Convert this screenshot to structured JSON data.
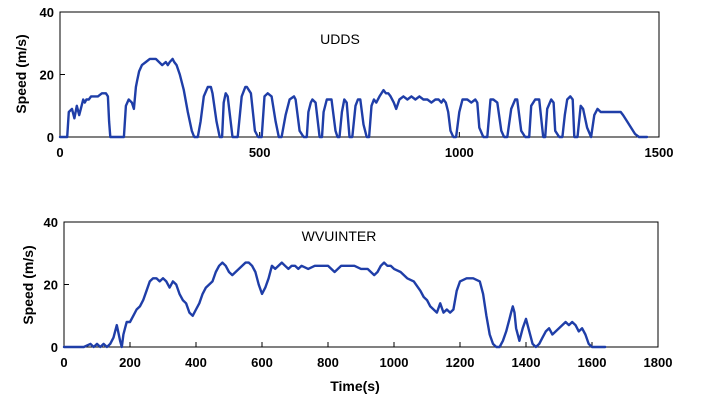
{
  "chart_data": [
    {
      "type": "line",
      "title": "UDDS",
      "xlabel": "",
      "ylabel": "Speed (m/s)",
      "xlim": [
        0,
        1500
      ],
      "ylim": [
        0,
        40
      ],
      "xticks": [
        0,
        500,
        1000,
        1500
      ],
      "yticks": [
        0,
        20,
        40
      ],
      "grid": false,
      "line_color": "#1f3ea8",
      "series": [
        {
          "x": [
            0,
            18,
            22,
            30,
            36,
            42,
            48,
            52,
            58,
            62,
            66,
            72,
            78,
            85,
            95,
            105,
            115,
            120,
            123,
            126,
            130,
            160,
            165,
            172,
            180,
            185,
            190,
            193,
            198,
            205,
            215,
            225,
            232,
            240,
            248,
            256,
            265,
            270,
            275,
            282,
            286,
            292,
            300,
            310,
            320,
            330,
            336,
            345,
            352,
            360,
            370,
            378,
            382,
            392,
            400,
            406,
            410,
            415,
            420,
            432,
            438,
            445,
            455,
            464,
            468,
            478,
            488,
            496,
            505,
            512,
            520,
            530,
            540,
            548,
            555,
            565,
            575,
            586,
            590,
            600,
            610,
            618,
            622,
            628,
            632,
            640,
            650,
            656,
            660,
            668,
            680,
            690,
            695,
            700,
            706,
            712,
            718,
            725,
            732,
            740,
            746,
            752,
            760,
            768,
            774,
            780,
            786,
            792,
            800,
            810,
            816,
            822,
            828,
            836,
            842,
            850,
            860,
            870,
            880,
            890,
            900,
            910,
            920,
            930,
            940,
            948,
            955,
            960,
            966,
            972,
            978,
            985,
            992,
            1000,
            1008,
            1020,
            1030,
            1040,
            1045,
            1050,
            1060,
            1070,
            1078,
            1085,
            1095,
            1105,
            1112,
            1120,
            1130,
            1140,
            1145,
            1155,
            1165,
            1175,
            1180,
            1190,
            1200,
            1210,
            1215,
            1220,
            1230,
            1236,
            1240,
            1250,
            1258,
            1264,
            1270,
            1278,
            1284,
            1288,
            1296,
            1304,
            1310,
            1320,
            1330,
            1338,
            1346,
            1354,
            1362,
            1370,
            1380,
            1390,
            1398,
            1404,
            1410,
            1420,
            1440,
            1450,
            1460,
            1470
          ],
          "y": [
            0,
            0,
            8,
            9,
            6,
            10,
            7,
            9,
            12,
            11,
            12,
            12,
            13,
            13,
            13,
            14,
            14,
            13,
            5,
            0,
            0,
            0,
            10,
            12,
            11,
            9,
            16,
            18,
            21,
            23,
            24,
            25,
            25,
            25,
            24,
            23,
            24,
            23,
            24,
            25,
            24,
            23,
            20,
            15,
            8,
            2,
            0,
            0,
            5,
            13,
            16,
            16,
            14,
            5,
            0,
            0,
            11,
            14,
            13,
            0,
            0,
            0,
            13,
            16,
            16,
            14,
            2,
            0,
            0,
            13,
            14,
            13,
            5,
            0,
            0,
            7,
            12,
            13,
            12,
            2,
            0,
            0,
            8,
            11,
            12,
            11,
            0,
            0,
            8,
            12,
            12,
            2,
            0,
            0,
            8,
            12,
            11,
            0,
            0,
            10,
            12,
            12,
            4,
            0,
            0,
            10,
            12,
            11,
            13,
            15,
            14,
            14,
            13,
            11,
            9,
            12,
            13,
            12,
            13,
            12,
            13,
            12,
            12,
            11,
            12,
            12,
            11,
            12,
            11,
            8,
            2,
            0,
            0,
            8,
            12,
            12,
            11,
            12,
            11,
            3,
            0,
            0,
            12,
            12,
            11,
            2,
            0,
            0,
            9,
            12,
            12,
            2,
            0,
            0,
            10,
            12,
            12,
            0,
            0,
            9,
            12,
            11,
            2,
            0,
            0,
            7,
            12,
            13,
            12,
            0,
            0,
            10,
            9,
            3,
            0,
            7,
            9,
            8,
            8,
            8,
            8,
            8,
            8,
            8,
            7,
            5,
            1,
            0,
            0,
            0
          ]
        }
      ]
    },
    {
      "type": "line",
      "title": "WVUINTER",
      "xlabel": "Time(s)",
      "ylabel": "Speed (m/s)",
      "xlim": [
        0,
        1800
      ],
      "ylim": [
        0,
        40
      ],
      "xticks": [
        0,
        200,
        400,
        600,
        800,
        1000,
        1200,
        1400,
        1600,
        1800
      ],
      "yticks": [
        0,
        20,
        40
      ],
      "grid": false,
      "line_color": "#1f3ea8",
      "series": [
        {
          "x": [
            0,
            60,
            80,
            90,
            100,
            110,
            120,
            130,
            140,
            150,
            160,
            170,
            175,
            180,
            185,
            190,
            200,
            210,
            220,
            230,
            240,
            250,
            260,
            270,
            280,
            290,
            300,
            310,
            320,
            330,
            340,
            350,
            360,
            370,
            380,
            390,
            400,
            410,
            420,
            430,
            440,
            450,
            460,
            470,
            480,
            490,
            500,
            510,
            520,
            530,
            540,
            550,
            560,
            570,
            580,
            590,
            600,
            610,
            620,
            630,
            640,
            650,
            660,
            670,
            680,
            690,
            700,
            710,
            720,
            740,
            760,
            780,
            800,
            820,
            840,
            860,
            880,
            900,
            920,
            940,
            950,
            960,
            970,
            980,
            990,
            1000,
            1020,
            1040,
            1060,
            1080,
            1090,
            1100,
            1110,
            1120,
            1130,
            1140,
            1150,
            1160,
            1170,
            1180,
            1190,
            1200,
            1220,
            1240,
            1260,
            1270,
            1280,
            1290,
            1300,
            1310,
            1320,
            1330,
            1340,
            1350,
            1355,
            1360,
            1365,
            1370,
            1380,
            1390,
            1400,
            1410,
            1420,
            1430,
            1440,
            1450,
            1460,
            1470,
            1480,
            1490,
            1500,
            1510,
            1520,
            1530,
            1540,
            1550,
            1560,
            1570,
            1580,
            1590,
            1600,
            1620,
            1640
          ],
          "y": [
            0,
            0,
            1,
            0,
            1,
            0,
            1,
            0,
            1,
            3,
            7,
            2,
            0,
            4,
            6,
            8,
            8,
            10,
            12,
            13,
            15,
            18,
            21,
            22,
            22,
            21,
            22,
            21,
            19,
            21,
            20,
            17,
            15,
            14,
            11,
            10,
            12,
            14,
            17,
            19,
            20,
            21,
            24,
            26,
            27,
            26,
            24,
            23,
            24,
            25,
            26,
            27,
            27,
            26,
            24,
            20,
            17,
            19,
            22,
            26,
            25,
            26,
            27,
            26,
            25,
            26,
            26,
            25,
            26,
            25,
            26,
            26,
            26,
            24,
            26,
            26,
            26,
            25,
            25,
            23,
            24,
            26,
            27,
            26,
            26,
            25,
            24,
            22,
            21,
            18,
            16,
            15,
            13,
            12,
            11,
            14,
            11,
            12,
            11,
            12,
            18,
            21,
            22,
            22,
            21,
            17,
            10,
            4,
            1,
            0,
            0,
            2,
            5,
            9,
            11,
            13,
            11,
            6,
            2,
            6,
            9,
            5,
            1,
            0,
            1,
            3,
            5,
            6,
            4,
            5,
            6,
            7,
            8,
            7,
            8,
            7,
            5,
            6,
            4,
            1,
            0,
            0,
            0
          ]
        }
      ]
    }
  ]
}
